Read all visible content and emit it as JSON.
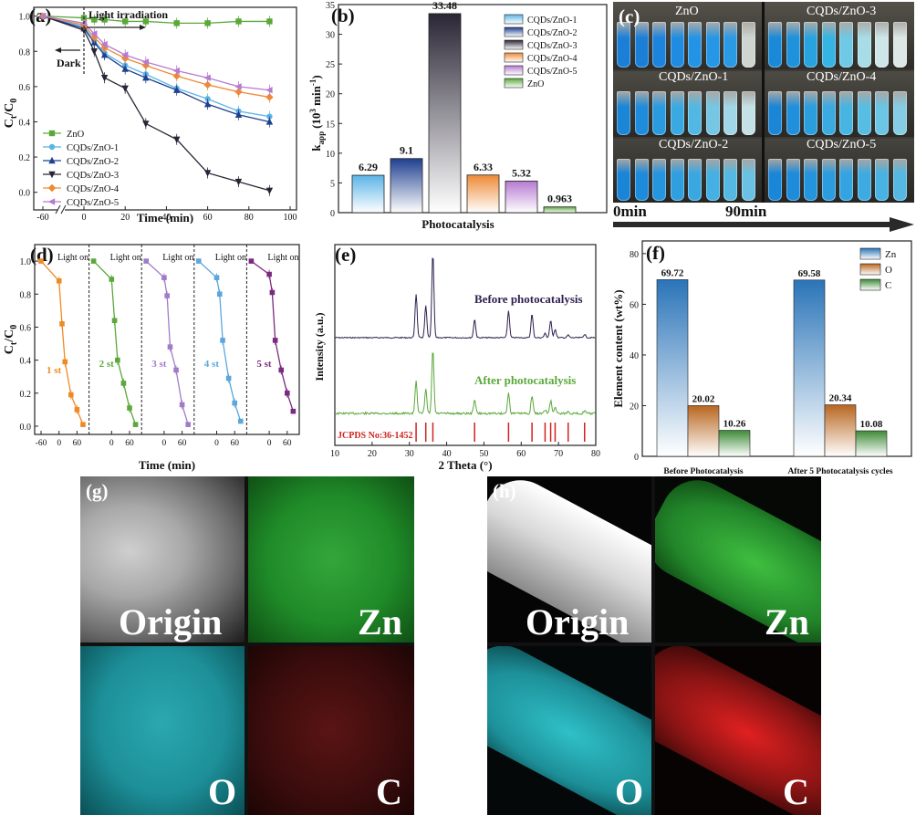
{
  "colors": {
    "ZnO": "#5aa83a",
    "CQDs/ZnO-1": "#5bb4e6",
    "CQDs/ZnO-2": "#1f3f8f",
    "CQDs/ZnO-3": "#2a2535",
    "CQDs/ZnO-4": "#ee8a35",
    "CQDs/ZnO-5": "#b67ad1",
    "cycle1": "#ee8a24",
    "cycle2": "#5aa83a",
    "cycle3": "#a07cc8",
    "cycle4": "#5ba7dd",
    "cycle5": "#7a2a80",
    "xrd_before": "#2e1f4f",
    "xrd_after": "#5aa83a",
    "jcpds": "#d0231e",
    "Zn": "#2a74b8",
    "O": "#b8661f",
    "C": "#3d8a36",
    "arrow": "#2a2a2a"
  },
  "chart_data": [
    {
      "id": "a",
      "type": "line",
      "panel_label": "(a)",
      "xlabel": "Time (min)",
      "ylabel_main": "C",
      "ylabel_sub_t": "t",
      "ylabel_sub_0": "0",
      "ylabel_slash": "/C",
      "x_ticks": [
        "-60",
        "0",
        "20",
        "40",
        "60",
        "80",
        "100"
      ],
      "y_ticks": [
        "0.0",
        "0.2",
        "0.4",
        "0.6",
        "0.8",
        "1.0"
      ],
      "xlim": [
        -60,
        100
      ],
      "ylim": [
        -0.1,
        1.05
      ],
      "annotations": {
        "light": "Light irradiation",
        "dark": "Dark"
      },
      "x": [
        -60,
        0,
        5,
        10,
        20,
        30,
        45,
        60,
        75,
        90
      ],
      "series": [
        {
          "name": "ZnO",
          "marker": "square",
          "values": [
            1.0,
            0.99,
            0.98,
            0.98,
            0.97,
            0.97,
            0.96,
            0.96,
            0.97,
            0.97
          ]
        },
        {
          "name": "CQDs/ZnO-1",
          "marker": "circle",
          "values": [
            1.0,
            0.94,
            0.86,
            0.79,
            0.72,
            0.67,
            0.59,
            0.53,
            0.46,
            0.43
          ]
        },
        {
          "name": "CQDs/ZnO-2",
          "marker": "triangle-up",
          "values": [
            1.0,
            0.93,
            0.85,
            0.78,
            0.7,
            0.65,
            0.58,
            0.5,
            0.44,
            0.4
          ]
        },
        {
          "name": "CQDs/ZnO-3",
          "marker": "triangle-down",
          "values": [
            1.0,
            0.92,
            0.8,
            0.65,
            0.59,
            0.39,
            0.3,
            0.11,
            0.06,
            0.01
          ]
        },
        {
          "name": "CQDs/ZnO-4",
          "marker": "diamond",
          "values": [
            1.0,
            0.95,
            0.88,
            0.82,
            0.76,
            0.72,
            0.66,
            0.61,
            0.57,
            0.54
          ]
        },
        {
          "name": "CQDs/ZnO-5",
          "marker": "triangle-left",
          "values": [
            1.0,
            0.96,
            0.9,
            0.84,
            0.78,
            0.74,
            0.69,
            0.65,
            0.6,
            0.58
          ]
        }
      ]
    },
    {
      "id": "b",
      "type": "bar",
      "panel_label": "(b)",
      "xlabel": "Photocatalysis",
      "ylabel": "k",
      "ylabel_sub": "app",
      "ylabel_unit": "(10",
      "ylabel_sup3": "3",
      "ylabel_min": " min",
      "ylabel_sup_neg": "-1",
      "ylabel_close": ")",
      "y_ticks": [
        "0",
        "5",
        "10",
        "15",
        "20",
        "25",
        "30",
        "35"
      ],
      "ylim": [
        0,
        35
      ],
      "categories": [
        "CQDs/ZnO-1",
        "CQDs/ZnO-2",
        "CQDs/ZnO-3",
        "CQDs/ZnO-4",
        "CQDs/ZnO-5",
        "ZnO"
      ],
      "values": [
        6.29,
        9.1,
        33.48,
        6.33,
        5.32,
        0.963
      ],
      "value_labels": [
        "6.29",
        "9.1",
        "33.48",
        "6.33",
        "5.32",
        "0.963"
      ],
      "legend_position": "top-right"
    },
    {
      "id": "d",
      "type": "line",
      "panel_label": "(d)",
      "xlabel": "Time (min)",
      "ylabel_main": "C",
      "ylabel_sub_t": "t",
      "ylabel_sub_0": "0",
      "ylabel_slash": "/C",
      "y_ticks": [
        "0.0",
        "0.2",
        "0.4",
        "0.6",
        "0.8",
        "1.0"
      ],
      "x_tick_labels": [
        "-60",
        "0",
        "60",
        "0",
        "60",
        "0",
        "60",
        "0",
        "60",
        "0",
        "60"
      ],
      "ylim": [
        -0.05,
        1.1
      ],
      "x_local": [
        -60,
        0,
        10,
        20,
        40,
        60,
        80
      ],
      "light_on": "Light on",
      "cycles": [
        {
          "label": "1 st",
          "values": [
            1.0,
            0.88,
            0.62,
            0.39,
            0.19,
            0.1,
            0.01
          ]
        },
        {
          "label": "2 st",
          "values": [
            1.0,
            0.89,
            0.64,
            0.4,
            0.26,
            0.11,
            0.01
          ]
        },
        {
          "label": "3 st",
          "values": [
            1.0,
            0.9,
            0.79,
            0.48,
            0.34,
            0.13,
            0.01
          ]
        },
        {
          "label": "4 st",
          "values": [
            1.0,
            0.9,
            0.8,
            0.52,
            0.29,
            0.14,
            0.03
          ]
        },
        {
          "label": "5 st",
          "values": [
            1.0,
            0.92,
            0.81,
            0.52,
            0.34,
            0.2,
            0.09
          ]
        }
      ]
    },
    {
      "id": "e",
      "type": "line",
      "panel_label": "(e)",
      "xlabel": "2 Theta (°)",
      "ylabel": "Intensity (a.u.)",
      "x_ticks": [
        "10",
        "20",
        "30",
        "40",
        "50",
        "60",
        "70",
        "80"
      ],
      "xlim": [
        10,
        80
      ],
      "series_labels": [
        "Before photocatalysis",
        "After photocatalysis"
      ],
      "jcpds_label": "JCPDS No:36-1452",
      "peaks": [
        {
          "pos": 31.8,
          "h": 0.52
        },
        {
          "pos": 34.4,
          "h": 0.38
        },
        {
          "pos": 36.3,
          "h": 1.0
        },
        {
          "pos": 47.5,
          "h": 0.22
        },
        {
          "pos": 56.6,
          "h": 0.32
        },
        {
          "pos": 62.9,
          "h": 0.28
        },
        {
          "pos": 66.4,
          "h": 0.05
        },
        {
          "pos": 67.9,
          "h": 0.2
        },
        {
          "pos": 69.1,
          "h": 0.1
        },
        {
          "pos": 72.6,
          "h": 0.03
        },
        {
          "pos": 77.0,
          "h": 0.04
        }
      ],
      "jcpds_lines": [
        31.8,
        34.4,
        36.3,
        47.5,
        56.6,
        62.9,
        66.4,
        67.9,
        69.1,
        72.6,
        77.0
      ]
    },
    {
      "id": "f",
      "type": "bar",
      "panel_label": "(f)",
      "ylabel": "Element content (wt%)",
      "y_ticks": [
        "0",
        "20",
        "40",
        "60",
        "80"
      ],
      "ylim": [
        0,
        85
      ],
      "categories": [
        "Before Photocatalysis",
        "After 5 Photocatalysis cycles"
      ],
      "series": [
        {
          "name": "Zn",
          "values": [
            69.72,
            69.58
          ],
          "labels": [
            "69.72",
            "69.58"
          ]
        },
        {
          "name": "O",
          "values": [
            20.02,
            20.34
          ],
          "labels": [
            "20.02",
            "20.34"
          ]
        },
        {
          "name": "C",
          "values": [
            10.26,
            10.08
          ],
          "labels": [
            "10.26",
            "10.08"
          ]
        }
      ],
      "legend_position": "top-right"
    }
  ],
  "photo_c": {
    "panel_label": "(c)",
    "labels": [
      "ZnO",
      "CQDs/ZnO-3",
      "CQDs/ZnO-1",
      "CQDs/ZnO-4",
      "CQDs/ZnO-2",
      "CQDs/ZnO-5"
    ],
    "time_start": "0min",
    "time_end": "90min"
  },
  "map_g": {
    "panel_label": "(g)",
    "tiles": [
      "Origin",
      "Zn",
      "O",
      "C"
    ]
  },
  "map_h": {
    "panel_label": "(h)",
    "tiles": [
      "Origin",
      "Zn",
      "O",
      "C"
    ]
  }
}
